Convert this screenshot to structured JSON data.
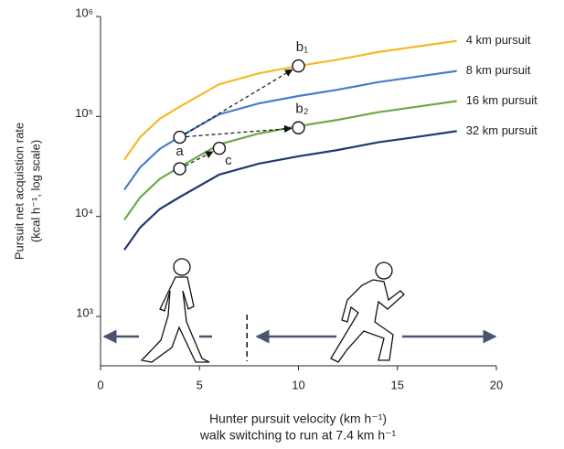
{
  "chart_data": {
    "type": "line",
    "xlabel": "Hunter pursuit velocity (km h⁻¹)",
    "xlabel_note": "walk switching to run at 7.4 km h⁻¹",
    "ylabel": "Pursuit net acquistion rate",
    "ylabel_unit": "(kcal h⁻¹, log scale)",
    "x": [
      1.2,
      2,
      3,
      4,
      6,
      8,
      10,
      12,
      14,
      16,
      18
    ],
    "series": [
      {
        "name": "4 km pursuit",
        "color": "#f5b82a",
        "values": [
          37000,
          62000,
          95000,
          125000,
          210000,
          270000,
          320000,
          370000,
          440000,
          500000,
          570000
        ]
      },
      {
        "name": "8 km pursuit",
        "color": "#4a7cc9",
        "values": [
          18500,
          31000,
          47500,
          62500,
          105000,
          135000,
          160000,
          185000,
          220000,
          250000,
          285000
        ]
      },
      {
        "name": "16 km pursuit",
        "color": "#6aaa48",
        "values": [
          9250,
          15500,
          23750,
          31250,
          52500,
          67500,
          80000,
          92500,
          110000,
          125000,
          142500
        ]
      },
      {
        "name": "32 km pursuit",
        "color": "#1f3a6e",
        "values": [
          4625,
          7750,
          11875,
          15625,
          26250,
          33750,
          40000,
          46250,
          55000,
          62500,
          71250
        ]
      }
    ],
    "points": [
      {
        "label": "a",
        "x": 4,
        "y": 62000
      },
      {
        "x": 4,
        "y": 30000
      },
      {
        "label": "b₁",
        "x": 10,
        "y": 320000
      },
      {
        "label": "b₂",
        "x": 10,
        "y": 77000
      },
      {
        "label": "c",
        "x": 6,
        "y": 48000
      }
    ],
    "switch_velocity": 7.4,
    "xlim": [
      0,
      20
    ],
    "xticks": [
      0,
      5,
      10,
      15,
      20
    ],
    "ylim": [
      321,
      1000000
    ],
    "yticks": [
      {
        "value": 1000,
        "label": "10³"
      },
      {
        "value": 10000,
        "label": "10⁴"
      },
      {
        "value": 100000,
        "label": "10⁵"
      },
      {
        "value": 1000000,
        "label": "10⁶"
      }
    ],
    "log_y": true
  }
}
